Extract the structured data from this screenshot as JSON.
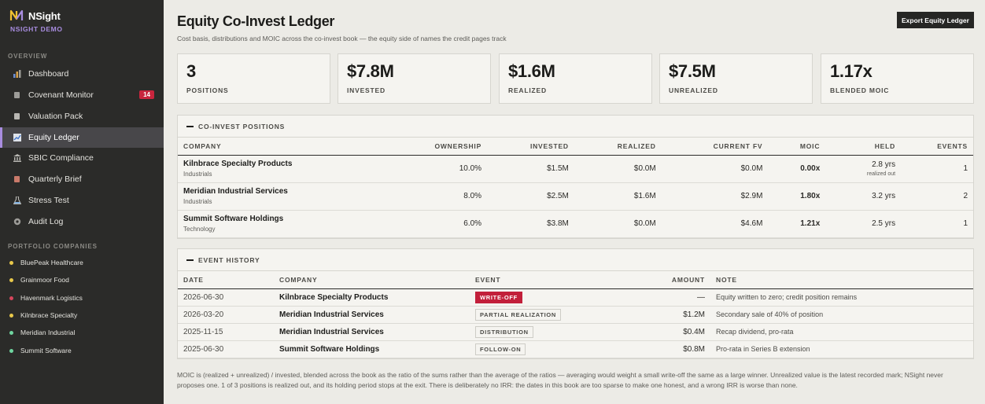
{
  "brand": {
    "name": "NSight",
    "sub": "NSIGHT DEMO"
  },
  "sidebar": {
    "overview_label": "OVERVIEW",
    "items": [
      {
        "label": "Dashboard",
        "icon": "bar-chart-icon"
      },
      {
        "label": "Covenant Monitor",
        "icon": "document-icon",
        "badge": "14"
      },
      {
        "label": "Valuation Pack",
        "icon": "document-icon"
      },
      {
        "label": "Equity Ledger",
        "icon": "line-chart-icon",
        "active": true
      },
      {
        "label": "SBIC Compliance",
        "icon": "bank-icon"
      },
      {
        "label": "Quarterly Brief",
        "icon": "book-icon"
      },
      {
        "label": "Stress Test",
        "icon": "flask-icon"
      },
      {
        "label": "Audit Log",
        "icon": "log-icon"
      }
    ],
    "portfolio_label": "PORTFOLIO COMPANIES",
    "companies": [
      {
        "label": "BluePeak Healthcare",
        "color": "#e8c84a"
      },
      {
        "label": "Grainmoor Food",
        "color": "#e8c84a"
      },
      {
        "label": "Havenmark Logistics",
        "color": "#d6465c"
      },
      {
        "label": "Kilnbrace Specialty",
        "color": "#e8c84a"
      },
      {
        "label": "Meridian Industrial",
        "color": "#6fd6a0"
      },
      {
        "label": "Summit Software",
        "color": "#6fd6a0"
      }
    ]
  },
  "header": {
    "title": "Equity Co-Invest Ledger",
    "subtitle": "Cost basis, distributions and MOIC across the co-invest book — the equity side of names the credit pages track",
    "export_label": "Export Equity Ledger"
  },
  "kpis": [
    {
      "value": "3",
      "label": "POSITIONS"
    },
    {
      "value": "$7.8M",
      "label": "INVESTED"
    },
    {
      "value": "$1.6M",
      "label": "REALIZED"
    },
    {
      "value": "$7.5M",
      "label": "UNREALIZED"
    },
    {
      "value": "1.17x",
      "label": "BLENDED MOIC"
    }
  ],
  "positions": {
    "title": "CO-INVEST POSITIONS",
    "columns": [
      "COMPANY",
      "OWNERSHIP",
      "INVESTED",
      "REALIZED",
      "CURRENT FV",
      "MOIC",
      "HELD",
      "EVENTS"
    ],
    "rows": [
      {
        "company": "Kilnbrace Specialty Products",
        "sector": "Industrials",
        "ownership": "10.0%",
        "invested": "$1.5M",
        "realized": "$0.0M",
        "fv": "$0.0M",
        "moic": "0.00x",
        "held": "2.8 yrs",
        "held_note": "realized out",
        "events": "1"
      },
      {
        "company": "Meridian Industrial Services",
        "sector": "Industrials",
        "ownership": "8.0%",
        "invested": "$2.5M",
        "realized": "$1.6M",
        "fv": "$2.9M",
        "moic": "1.80x",
        "held": "3.2 yrs",
        "held_note": "",
        "events": "2"
      },
      {
        "company": "Summit Software Holdings",
        "sector": "Technology",
        "ownership": "6.0%",
        "invested": "$3.8M",
        "realized": "$0.0M",
        "fv": "$4.6M",
        "moic": "1.21x",
        "held": "2.5 yrs",
        "held_note": "",
        "events": "1"
      }
    ]
  },
  "events": {
    "title": "EVENT HISTORY",
    "columns": [
      "DATE",
      "COMPANY",
      "EVENT",
      "AMOUNT",
      "NOTE"
    ],
    "rows": [
      {
        "date": "2026-06-30",
        "company": "Kilnbrace Specialty Products",
        "event": "WRITE-OFF",
        "event_style": "red",
        "amount": "—",
        "note": "Equity written to zero; credit position remains"
      },
      {
        "date": "2026-03-20",
        "company": "Meridian Industrial Services",
        "event": "PARTIAL REALIZATION",
        "event_style": "outline",
        "amount": "$1.2M",
        "note": "Secondary sale of 40% of position"
      },
      {
        "date": "2025-11-15",
        "company": "Meridian Industrial Services",
        "event": "DISTRIBUTION",
        "event_style": "outline",
        "amount": "$0.4M",
        "note": "Recap dividend, pro-rata"
      },
      {
        "date": "2025-06-30",
        "company": "Summit Software Holdings",
        "event": "FOLLOW-ON",
        "event_style": "outline",
        "amount": "$0.8M",
        "note": "Pro-rata in Series B extension"
      }
    ]
  },
  "footnote": "MOIC is (realized + unrealized) / invested, blended across the book as the ratio of the sums rather than the average of the ratios — averaging would weight a small write-off the same as a large winner. Unrealized value is the latest recorded mark; NSight never proposes one. 1 of 3 positions is realized out, and its holding period stops at the exit. There is deliberately no IRR: the dates in this book are too sparse to make one honest, and a wrong IRR is worse than none."
}
